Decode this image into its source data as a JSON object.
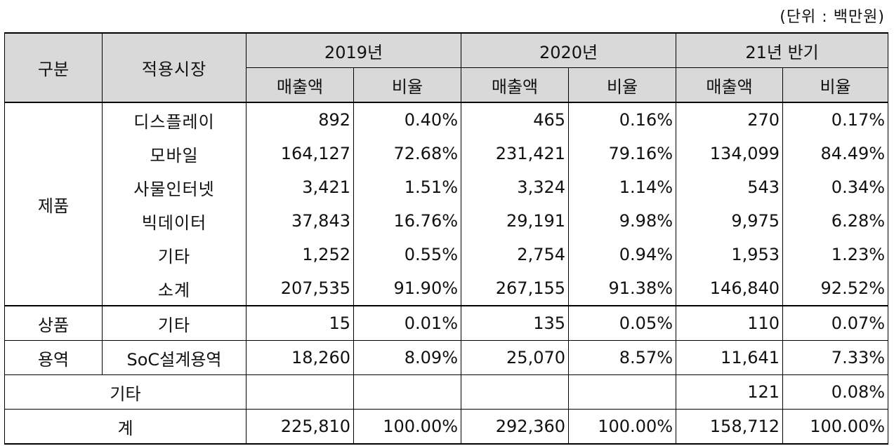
{
  "unit_note": "(단위 : 백만원)",
  "header": {
    "category": "구분",
    "market": "적용시장",
    "periods": [
      "2019년",
      "2020년",
      "21년 반기"
    ],
    "sales": "매출액",
    "ratio": "비율"
  },
  "groups": {
    "product": "제품",
    "goods": "상품",
    "service": "용역"
  },
  "rows": [
    {
      "market": "디스플레이",
      "values": [
        "892",
        "0.40%",
        "465",
        "0.16%",
        "270",
        "0.17%"
      ]
    },
    {
      "market": "모바일",
      "values": [
        "164,127",
        "72.68%",
        "231,421",
        "79.16%",
        "134,099",
        "84.49%"
      ]
    },
    {
      "market": "사물인터넷",
      "values": [
        "3,421",
        "1.51%",
        "3,324",
        "1.14%",
        "543",
        "0.34%"
      ]
    },
    {
      "market": "빅데이터",
      "values": [
        "37,843",
        "16.76%",
        "29,191",
        "9.98%",
        "9,975",
        "6.28%"
      ]
    },
    {
      "market": "기타",
      "values": [
        "1,252",
        "0.55%",
        "2,754",
        "0.94%",
        "1,953",
        "1.23%"
      ]
    },
    {
      "market": "소계",
      "values": [
        "207,535",
        "91.90%",
        "267,155",
        "91.38%",
        "146,840",
        "92.52%"
      ]
    },
    {
      "market": "기타",
      "values": [
        "15",
        "0.01%",
        "135",
        "0.05%",
        "110",
        "0.07%"
      ]
    },
    {
      "market": "SoC설계용역",
      "values": [
        "18,260",
        "8.09%",
        "25,070",
        "8.57%",
        "11,641",
        "7.33%"
      ]
    }
  ],
  "other_row": {
    "label": "기타",
    "values": [
      "",
      "",
      "",
      "",
      "121",
      "0.08%"
    ]
  },
  "total_row": {
    "label": "계",
    "values": [
      "225,810",
      "100.00%",
      "292,360",
      "100.00%",
      "158,712",
      "100.00%"
    ]
  }
}
